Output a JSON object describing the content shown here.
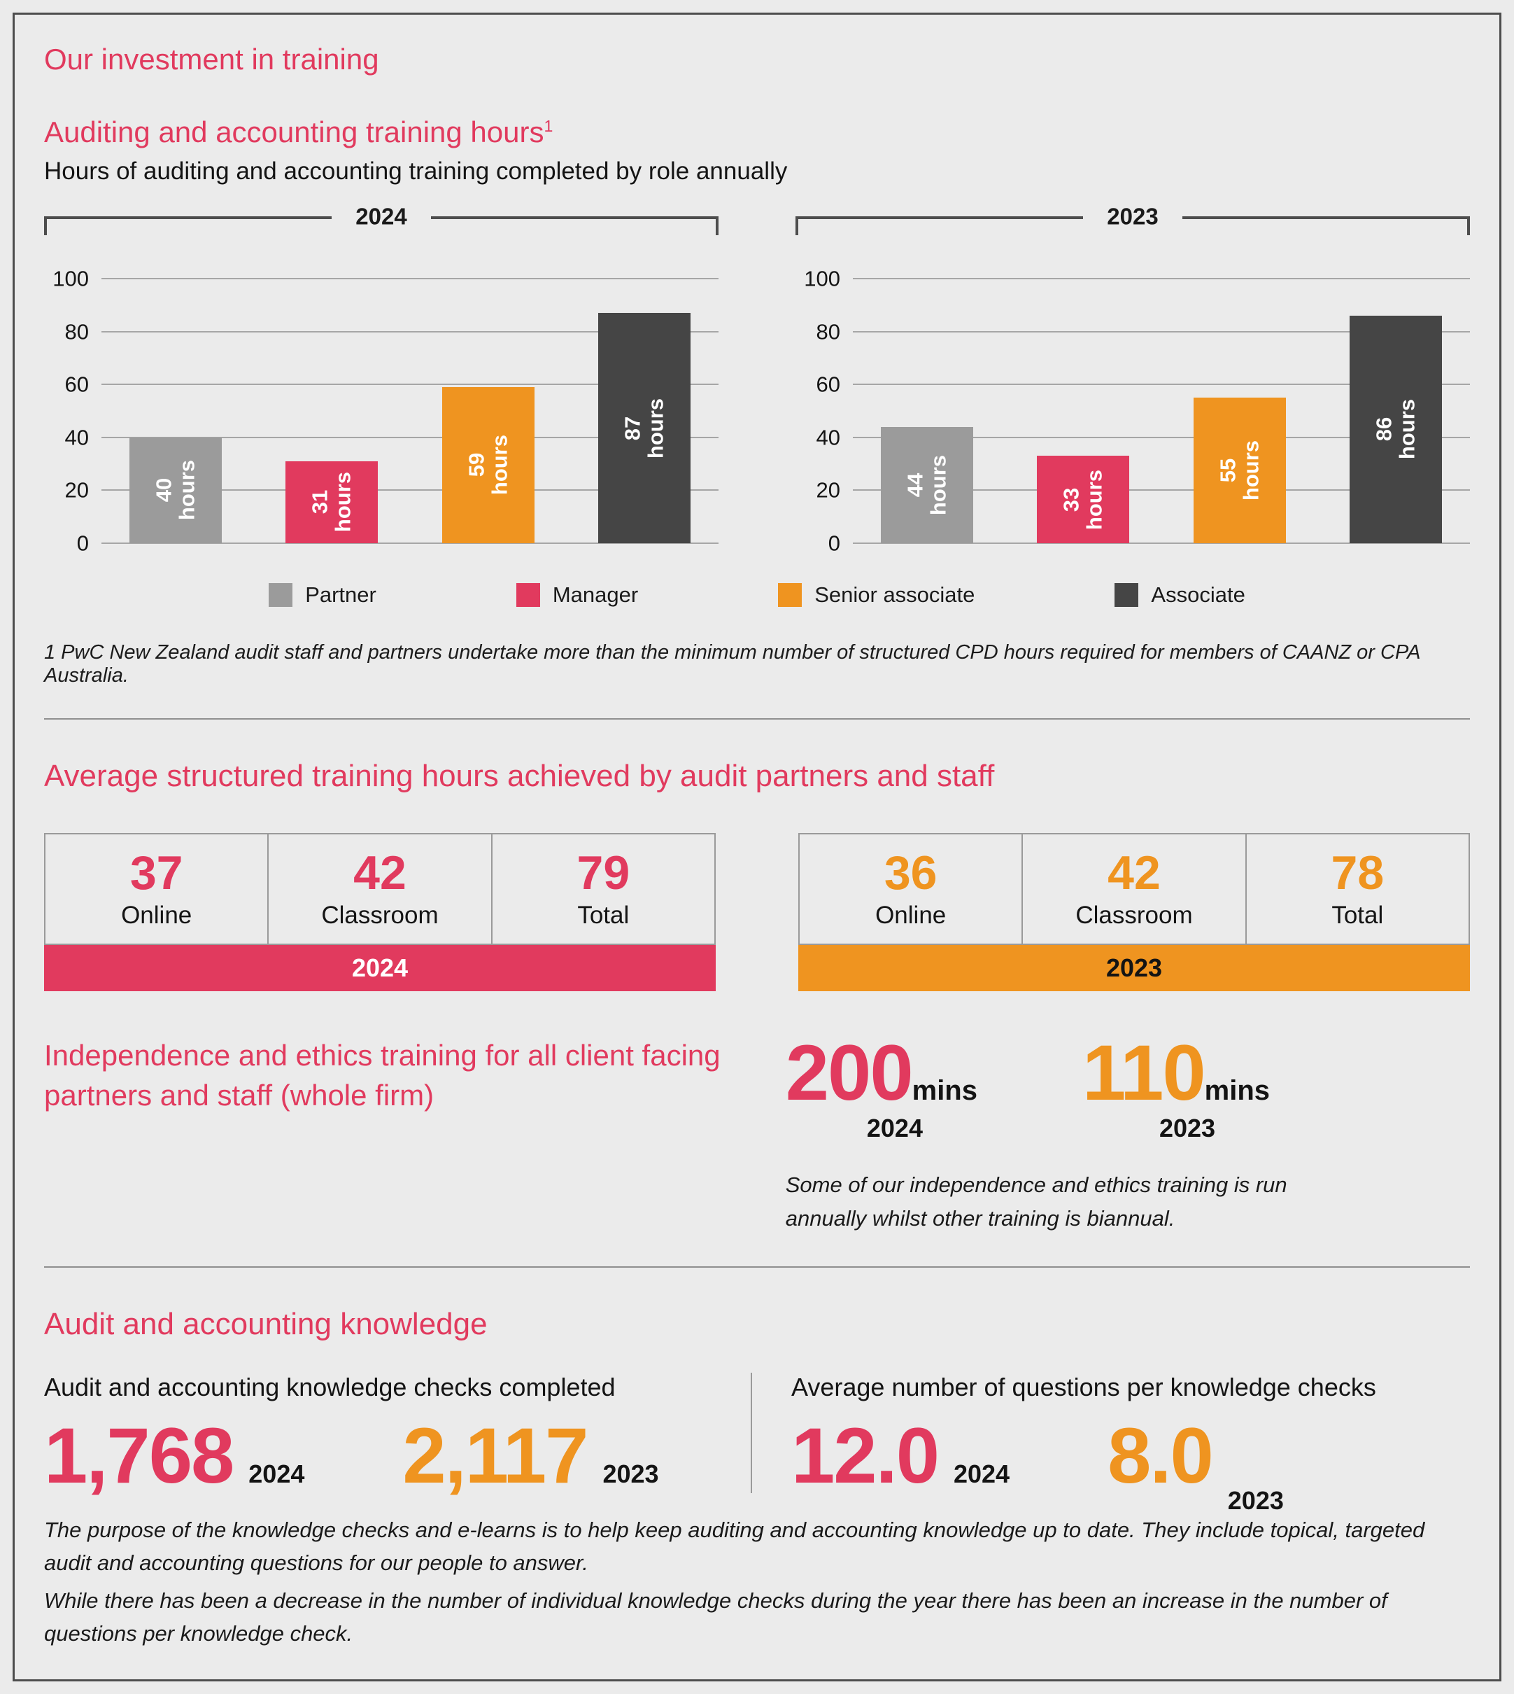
{
  "colors": {
    "pink": "#e13a5e",
    "orange": "#ef9420",
    "grey": "#9b9b9b",
    "dark": "#454545"
  },
  "header": {
    "title": "Our investment in training"
  },
  "training_hours": {
    "heading": "Auditing and accounting training hours",
    "heading_footnote_marker": "1",
    "subheading": "Hours of auditing and accounting training completed by role annually",
    "footnote": "1  PwC New Zealand audit staff and partners undertake more than the minimum number of structured CPD hours required for members of CAANZ or CPA Australia."
  },
  "chart_data": [
    {
      "type": "bar",
      "title": "2024",
      "categories": [
        "Partner",
        "Manager",
        "Senior associate",
        "Associate"
      ],
      "values": [
        40,
        31,
        59,
        87
      ],
      "unit": "hours",
      "ylim": [
        0,
        100
      ],
      "yticks": [
        0,
        20,
        40,
        60,
        80,
        100
      ],
      "grid": true,
      "legend_position": "bottom",
      "bar_colors": [
        "#9b9b9b",
        "#e13a5e",
        "#ef9420",
        "#454545"
      ]
    },
    {
      "type": "bar",
      "title": "2023",
      "categories": [
        "Partner",
        "Manager",
        "Senior associate",
        "Associate"
      ],
      "values": [
        44,
        33,
        55,
        86
      ],
      "unit": "hours",
      "ylim": [
        0,
        100
      ],
      "yticks": [
        0,
        20,
        40,
        60,
        80,
        100
      ],
      "grid": true,
      "legend_position": "bottom",
      "bar_colors": [
        "#9b9b9b",
        "#e13a5e",
        "#ef9420",
        "#454545"
      ]
    }
  ],
  "legend": [
    {
      "label": "Partner",
      "color": "#9b9b9b"
    },
    {
      "label": "Manager",
      "color": "#e13a5e"
    },
    {
      "label": "Senior associate",
      "color": "#ef9420"
    },
    {
      "label": "Associate",
      "color": "#454545"
    }
  ],
  "avg_hours": {
    "heading": "Average structured training hours achieved by audit partners and staff",
    "tables": [
      {
        "year": "2024",
        "accent": "#e13a5e",
        "year_text_color": "#ffffff",
        "cells": [
          {
            "value": "37",
            "label": "Online"
          },
          {
            "value": "42",
            "label": "Classroom"
          },
          {
            "value": "79",
            "label": "Total"
          }
        ]
      },
      {
        "year": "2023",
        "accent": "#ef9420",
        "year_text_color": "#141414",
        "cells": [
          {
            "value": "36",
            "label": "Online"
          },
          {
            "value": "42",
            "label": "Classroom"
          },
          {
            "value": "78",
            "label": "Total"
          }
        ]
      }
    ]
  },
  "ethics": {
    "heading": "Independence and ethics training for all client facing partners and staff (whole firm)",
    "stats": [
      {
        "value": "200",
        "unit": "mins",
        "year": "2024",
        "color": "#e13a5e"
      },
      {
        "value": "110",
        "unit": "mins",
        "year": "2023",
        "color": "#ef9420"
      }
    ],
    "note": "Some of our independence and ethics training is run annually whilst other training is biannual."
  },
  "knowledge": {
    "heading": "Audit and accounting knowledge",
    "columns": [
      {
        "title": "Audit and accounting knowledge checks completed",
        "stats": [
          {
            "value": "1,768",
            "year": "2024",
            "color": "#e13a5e"
          },
          {
            "value": "2,117",
            "year": "2023",
            "color": "#ef9420"
          }
        ]
      },
      {
        "title": "Average number of questions per knowledge checks",
        "stats": [
          {
            "value": "12.0",
            "year": "2024",
            "color": "#e13a5e"
          },
          {
            "value": "8.0",
            "year": "2023",
            "color": "#ef9420"
          }
        ]
      }
    ],
    "footnotes": [
      "The purpose of the knowledge checks and e-learns is to help keep auditing and accounting knowledge up to date. They include topical, targeted audit and accounting questions for our people to answer.",
      "While there has been a decrease in the number of individual knowledge checks during the year there has been an increase in the number of questions per knowledge check."
    ]
  }
}
